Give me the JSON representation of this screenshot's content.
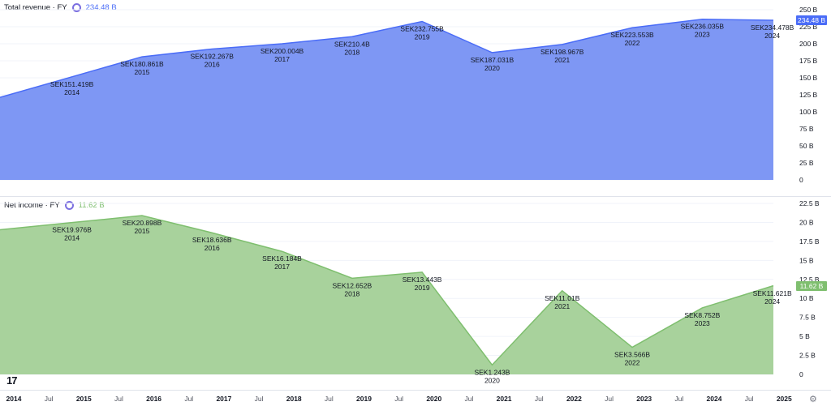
{
  "panes": {
    "revenue": {
      "label": "Total revenue · FY",
      "current_value": "234.48 B",
      "sync_icon": "sync-icon",
      "color": "#4a6cf7",
      "fill": "#7e97f4"
    },
    "net_income": {
      "label": "Net income · FY",
      "current_value": "11.62 B",
      "sync_icon": "sync-icon",
      "color": "#7fbf6f",
      "fill": "#a8d29c"
    }
  },
  "x_axis_ticks": [
    "2014",
    "Jul",
    "2015",
    "Jul",
    "2016",
    "Jul",
    "2017",
    "Jul",
    "2018",
    "Jul",
    "2019",
    "Jul",
    "2020",
    "Jul",
    "2021",
    "Jul",
    "2022",
    "Jul",
    "2023",
    "Jul",
    "2024",
    "Jul",
    "2025"
  ],
  "settings_icon": "gear-icon",
  "logo_icon": "tradingview-logo-icon",
  "chart_data": [
    {
      "type": "area",
      "title": "Total revenue · FY",
      "y_ticks": [
        "250 B",
        "225 B",
        "200 B",
        "175 B",
        "150 B",
        "125 B",
        "100 B",
        "75 B",
        "50 B",
        "25 B",
        "0"
      ],
      "ylim": [
        0,
        250
      ],
      "unit": "B",
      "last_value_label": "234.48 B",
      "points": [
        {
          "year": 2014,
          "value": 151.419,
          "label": "SEK151.419B"
        },
        {
          "year": 2015,
          "value": 180.861,
          "label": "SEK180.861B"
        },
        {
          "year": 2016,
          "value": 192.267,
          "label": "SEK192.267B"
        },
        {
          "year": 2017,
          "value": 200.004,
          "label": "SEK200.004B"
        },
        {
          "year": 2018,
          "value": 210.4,
          "label": "SEK210.4B"
        },
        {
          "year": 2019,
          "value": 232.755,
          "label": "SEK232.755B"
        },
        {
          "year": 2020,
          "value": 187.031,
          "label": "SEK187.031B"
        },
        {
          "year": 2021,
          "value": 198.967,
          "label": "SEK198.967B"
        },
        {
          "year": 2022,
          "value": 223.553,
          "label": "SEK223.553B"
        },
        {
          "year": 2023,
          "value": 236.035,
          "label": "SEK236.035B"
        },
        {
          "year": 2024,
          "value": 234.478,
          "label": "SEK234.478B"
        }
      ]
    },
    {
      "type": "area",
      "title": "Net income · FY",
      "y_ticks": [
        "22.5 B",
        "20 B",
        "17.5 B",
        "15 B",
        "12.5 B",
        "10 B",
        "7.5 B",
        "5 B",
        "2.5 B",
        "0"
      ],
      "ylim": [
        0,
        22.5
      ],
      "unit": "B",
      "last_value_label": "11.62 B",
      "points": [
        {
          "year": 2014,
          "value": 19.976,
          "label": "SEK19.976B"
        },
        {
          "year": 2015,
          "value": 20.898,
          "label": "SEK20.898B"
        },
        {
          "year": 2016,
          "value": 18.636,
          "label": "SEK18.636B"
        },
        {
          "year": 2017,
          "value": 16.184,
          "label": "SEK16.184B"
        },
        {
          "year": 2018,
          "value": 12.652,
          "label": "SEK12.652B"
        },
        {
          "year": 2019,
          "value": 13.443,
          "label": "SEK13.443B"
        },
        {
          "year": 2020,
          "value": 1.243,
          "label": "SEK1.243B"
        },
        {
          "year": 2021,
          "value": 11.01,
          "label": "SEK11.01B"
        },
        {
          "year": 2022,
          "value": 3.566,
          "label": "SEK3.566B"
        },
        {
          "year": 2023,
          "value": 8.752,
          "label": "SEK8.752B"
        },
        {
          "year": 2024,
          "value": 11.621,
          "label": "SEK11.621B"
        }
      ]
    }
  ]
}
